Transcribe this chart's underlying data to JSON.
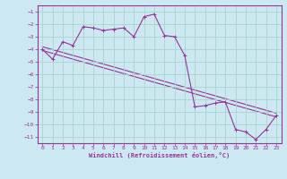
{
  "xlabel": "Windchill (Refroidissement éolien,°C)",
  "background_color": "#cce8f0",
  "grid_color": "#aad4cc",
  "line_color": "#993399",
  "ylim": [
    -11.5,
    -0.5
  ],
  "xlim": [
    -0.5,
    23.5
  ],
  "yticks": [
    -1,
    -2,
    -3,
    -4,
    -5,
    -6,
    -7,
    -8,
    -9,
    -10,
    -11
  ],
  "xticks": [
    0,
    1,
    2,
    3,
    4,
    5,
    6,
    7,
    8,
    9,
    10,
    11,
    12,
    13,
    14,
    15,
    16,
    17,
    18,
    19,
    20,
    21,
    22,
    23
  ],
  "series1_x": [
    0,
    1,
    2,
    3,
    4,
    5,
    6,
    7,
    8,
    9,
    10,
    11,
    12,
    13,
    14,
    15,
    16,
    17,
    18,
    19,
    20,
    21,
    22,
    23
  ],
  "series1_y": [
    -4.0,
    -4.8,
    -3.4,
    -3.7,
    -2.2,
    -2.3,
    -2.5,
    -2.4,
    -2.3,
    -3.0,
    -1.4,
    -1.2,
    -2.9,
    -3.0,
    -4.5,
    -8.6,
    -8.5,
    -8.3,
    -8.2,
    -10.4,
    -10.6,
    -11.2,
    -10.4,
    -9.3
  ],
  "line2_x": [
    0,
    23
  ],
  "line2_y": [
    -3.8,
    -9.1
  ],
  "line3_x": [
    0,
    23
  ],
  "line3_y": [
    -4.1,
    -9.4
  ],
  "xlabel_fontsize": 5.0,
  "tick_fontsize": 4.5,
  "marker": "+"
}
